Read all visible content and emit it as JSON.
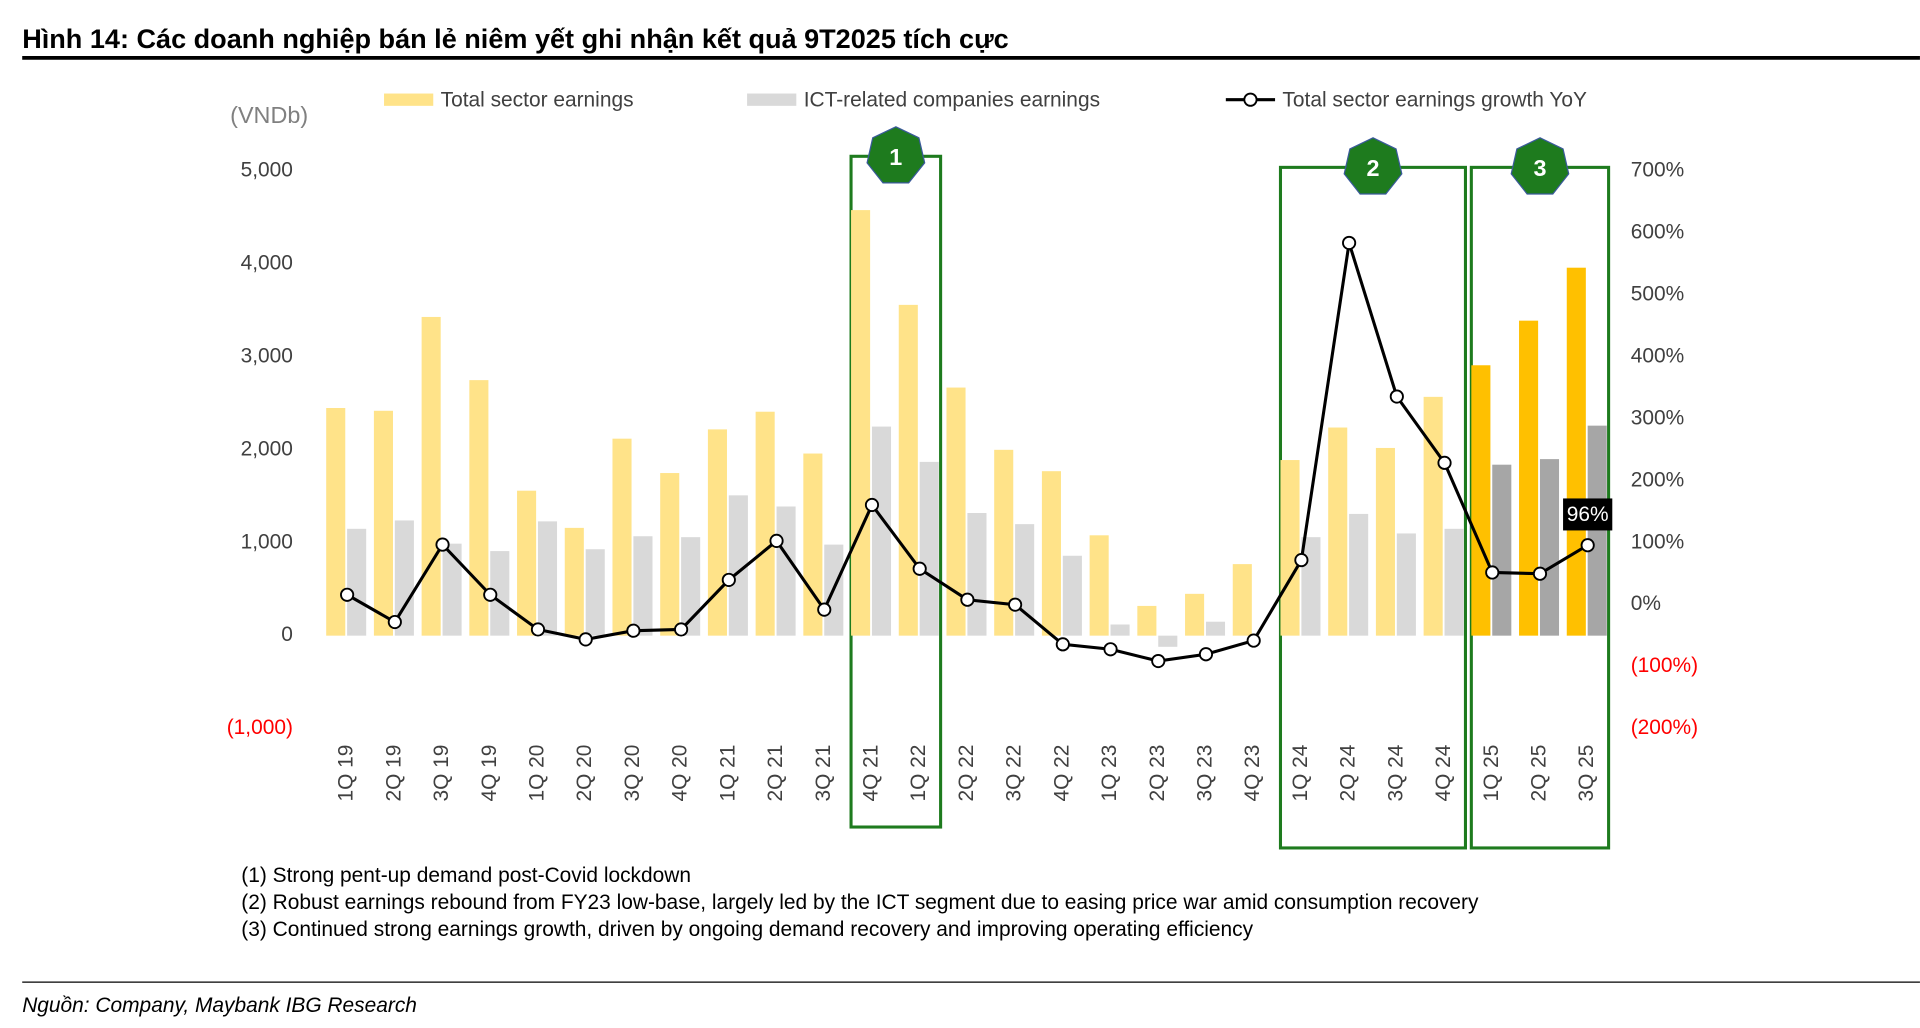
{
  "header": {
    "title": "Hình 14: Các doanh nghiệp bán lẻ niêm yết ghi nhận kết quả 9T2025 tích cực"
  },
  "chart_data": {
    "type": "bar-line",
    "y_label": "(VNDb)",
    "categories": [
      "1Q 19",
      "2Q 19",
      "3Q 19",
      "4Q 19",
      "1Q 20",
      "2Q 20",
      "3Q 20",
      "4Q 20",
      "1Q 21",
      "2Q 21",
      "3Q 21",
      "4Q 21",
      "1Q 22",
      "2Q 22",
      "3Q 22",
      "4Q 22",
      "1Q 23",
      "2Q 23",
      "3Q 23",
      "4Q 23",
      "1Q 24",
      "2Q 24",
      "3Q 24",
      "4Q 24",
      "1Q 25",
      "2Q 25",
      "3Q 25"
    ],
    "series": [
      {
        "name": "Total sector earnings",
        "type": "bar",
        "color": "#FFE389",
        "colors": [
          "#FFE389",
          "#FFE389",
          "#FFE389",
          "#FFE389",
          "#FFE389",
          "#FFE389",
          "#FFE389",
          "#FFE389",
          "#FFE389",
          "#FFE389",
          "#FFE389",
          "#FFE389",
          "#FFE389",
          "#FFE389",
          "#FFE389",
          "#FFE389",
          "#FFE389",
          "#FFE389",
          "#FFE389",
          "#FFE389",
          "#FFE389",
          "#FFE389",
          "#FFE389",
          "#FFE389",
          "#FFC000",
          "#FFC000",
          "#FFC000"
        ],
        "values": [
          2450,
          2420,
          3430,
          2750,
          1560,
          1160,
          2120,
          1750,
          2220,
          2410,
          1960,
          4580,
          3560,
          2670,
          2000,
          1770,
          1080,
          320,
          450,
          770,
          1890,
          2240,
          2020,
          2570,
          2910,
          3390,
          3960
        ]
      },
      {
        "name": "ICT-related companies earnings",
        "type": "bar",
        "color": "#D9D9D9",
        "colors": [
          "#D9D9D9",
          "#D9D9D9",
          "#D9D9D9",
          "#D9D9D9",
          "#D9D9D9",
          "#D9D9D9",
          "#D9D9D9",
          "#D9D9D9",
          "#D9D9D9",
          "#D9D9D9",
          "#D9D9D9",
          "#D9D9D9",
          "#D9D9D9",
          "#D9D9D9",
          "#D9D9D9",
          "#D9D9D9",
          "#D9D9D9",
          "#D9D9D9",
          "#D9D9D9",
          "#D9D9D9",
          "#D9D9D9",
          "#D9D9D9",
          "#D9D9D9",
          "#D9D9D9",
          "#A6A6A6",
          "#A6A6A6",
          "#A6A6A6"
        ],
        "values": [
          1150,
          1240,
          990,
          910,
          1230,
          930,
          1070,
          1060,
          1510,
          1390,
          980,
          2250,
          1870,
          1320,
          1200,
          860,
          120,
          -120,
          150,
          null,
          1060,
          1310,
          1100,
          1150,
          1840,
          1900,
          2260
        ]
      },
      {
        "name": "Total sector earnings growth YoY",
        "type": "line",
        "axis": "y2",
        "color": "#000000",
        "values": [
          16,
          -28,
          97,
          16,
          -40,
          -56,
          -42,
          -40,
          40,
          103,
          -8,
          161,
          58,
          8,
          0,
          -64,
          -72,
          -91,
          -80,
          -58,
          72,
          584,
          336,
          229,
          52,
          50,
          96
        ],
        "value_labels": [
          null,
          null,
          null,
          null,
          null,
          null,
          null,
          null,
          null,
          null,
          null,
          null,
          null,
          null,
          null,
          null,
          null,
          null,
          null,
          null,
          null,
          null,
          null,
          null,
          null,
          null,
          "96%"
        ]
      }
    ],
    "ylim": [
      -1000,
      5000
    ],
    "yticks": [
      {
        "value": -1000,
        "label": "(1,000)"
      },
      0,
      {
        "value": 1000,
        "label": "1,000"
      },
      {
        "value": 2000,
        "label": "2,000"
      },
      {
        "value": 3000,
        "label": "3,000"
      },
      {
        "value": 4000,
        "label": "4,000"
      },
      {
        "value": 5000,
        "label": "5,000"
      }
    ],
    "y2lim": [
      -200,
      700
    ],
    "y2ticks": [
      {
        "value": -200,
        "label": "(200%)"
      },
      {
        "value": -100,
        "label": "(100%)"
      },
      {
        "value": 0,
        "label": "0%"
      },
      {
        "value": 100,
        "label": "100%"
      },
      {
        "value": 200,
        "label": "200%"
      },
      {
        "value": 300,
        "label": "300%"
      },
      {
        "value": 400,
        "label": "400%"
      },
      {
        "value": 500,
        "label": "500%"
      },
      {
        "value": 600,
        "label": "600%"
      },
      {
        "value": 700,
        "label": "700%"
      }
    ],
    "negative_tick_color": "#FF0000",
    "legend": "top",
    "highlights": [
      {
        "label": "1",
        "start": "4Q 21",
        "end": "1Q 22"
      },
      {
        "label": "2",
        "start": "1Q 24",
        "end": "4Q 24"
      },
      {
        "label": "3",
        "start": "1Q 25",
        "end": "3Q 25"
      }
    ],
    "highlight_color": "#1E7B1E"
  },
  "notes": [
    "(1) Strong pent-up demand post-Covid lockdown",
    "(2) Robust earnings rebound from FY23 low-base, largely led by the ICT segment due to easing price war amid consumption recovery",
    "(3) Continued strong earnings growth, driven by ongoing demand recovery and improving operating efficiency"
  ],
  "footer": {
    "source": "Nguồn: Company, Maybank IBG Research"
  }
}
